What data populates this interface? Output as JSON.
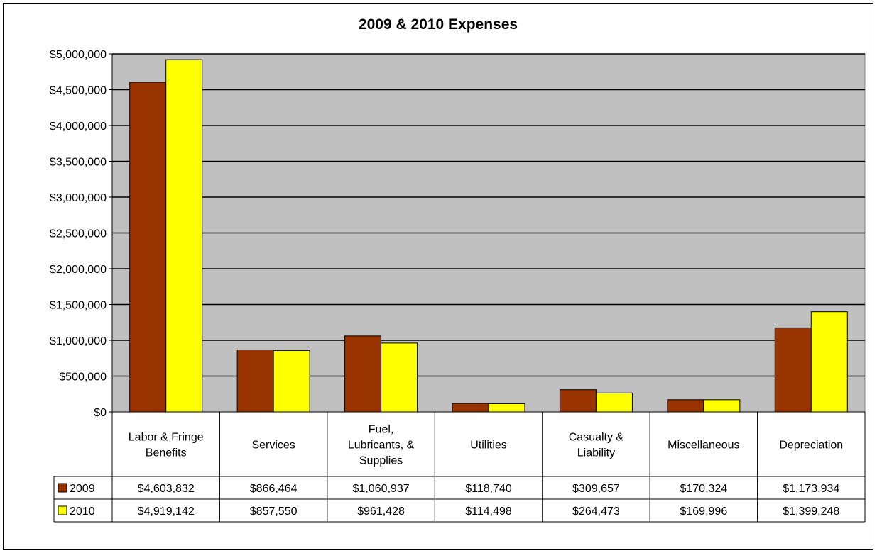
{
  "chart_data": {
    "type": "bar",
    "title": "2009 & 2010 Expenses",
    "categories": [
      [
        "Labor & Fringe",
        "Benefits"
      ],
      [
        "Services"
      ],
      [
        "Fuel,",
        "Lubricants, &",
        "Supplies"
      ],
      [
        "Utilities"
      ],
      [
        "Casualty &",
        "Liability"
      ],
      [
        "Miscellaneous"
      ],
      [
        "Depreciation"
      ]
    ],
    "series": [
      {
        "name": "2009",
        "color": "#993300",
        "values": [
          4603832,
          866464,
          1060937,
          118740,
          309657,
          170324,
          1173934
        ],
        "labels": [
          "$4,603,832",
          "$866,464",
          "$1,060,937",
          "$118,740",
          "$309,657",
          "$170,324",
          "$1,173,934"
        ]
      },
      {
        "name": "2010",
        "color": "#ffff00",
        "values": [
          4919142,
          857550,
          961428,
          114498,
          264473,
          169996,
          1399248
        ],
        "labels": [
          "$4,919,142",
          "$857,550",
          "$961,428",
          "$114,498",
          "$264,473",
          "$169,996",
          "$1,399,248"
        ]
      }
    ],
    "ylim": [
      0,
      5000000
    ],
    "yticks": [
      0,
      500000,
      1000000,
      1500000,
      2000000,
      2500000,
      3000000,
      3500000,
      4000000,
      4500000,
      5000000
    ],
    "ytick_labels": [
      "$0",
      "$500,000",
      "$1,000,000",
      "$1,500,000",
      "$2,000,000",
      "$2,500,000",
      "$3,000,000",
      "$3,500,000",
      "$4,000,000",
      "$4,500,000",
      "$5,000,000"
    ],
    "grid": true,
    "plot_background": "#c0c0c0",
    "data_table": true
  }
}
